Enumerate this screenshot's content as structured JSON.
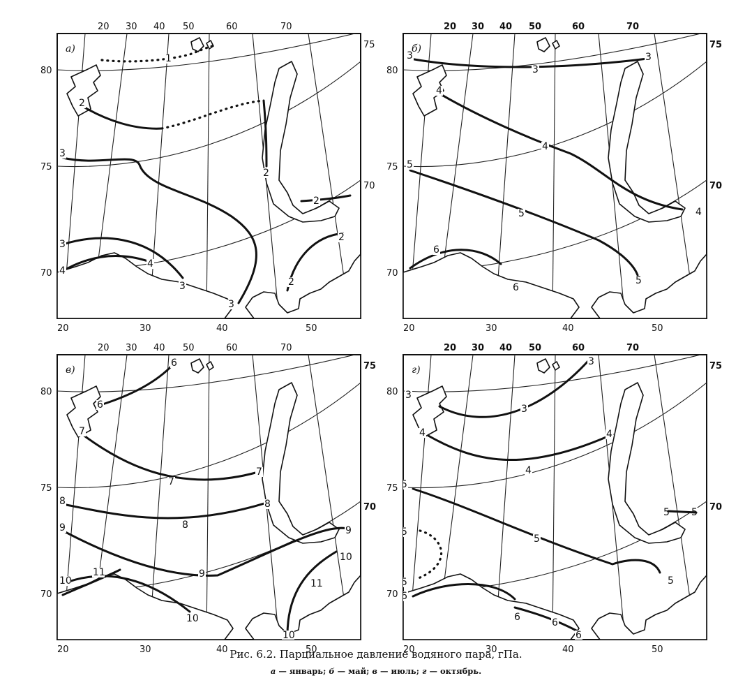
{
  "caption": "Рис. 6.2. Парциальное давление водяного пара, гПа.",
  "legend": [
    {
      "letter": "а",
      "text": "январь;"
    },
    {
      "letter": "б",
      "text": "май;"
    },
    {
      "letter": "в",
      "text": "июль;"
    },
    {
      "letter": "г",
      "text": "октябрь."
    }
  ],
  "panels": [
    {
      "id": "a",
      "label": "а)",
      "month": "январь",
      "top_lon_ticks": [
        "20",
        "30",
        "40",
        "50",
        "60",
        "70"
      ],
      "bottom_lon_ticks": [
        "20",
        "30",
        "40",
        "50"
      ],
      "left_lat_ticks": [
        "80",
        "75",
        "70"
      ],
      "right_lat_ticks": [
        "75",
        "70"
      ],
      "isolines": [
        {
          "value": "1",
          "style": "dotted"
        },
        {
          "value": "2",
          "style": "solid"
        },
        {
          "value": "3",
          "style": "solid"
        },
        {
          "value": "4",
          "style": "solid"
        }
      ]
    },
    {
      "id": "b",
      "label": "б)",
      "month": "май",
      "top_lon_ticks": [
        "20",
        "30",
        "40",
        "50",
        "60",
        "70"
      ],
      "bottom_lon_ticks": [
        "20",
        "30",
        "40",
        "50"
      ],
      "left_lat_ticks": [
        "80",
        "75",
        "70"
      ],
      "right_lat_ticks": [
        "75",
        "70"
      ],
      "isolines": [
        {
          "value": "3",
          "style": "solid"
        },
        {
          "value": "4",
          "style": "solid"
        },
        {
          "value": "5",
          "style": "solid"
        },
        {
          "value": "6",
          "style": "solid"
        }
      ]
    },
    {
      "id": "v",
      "label": "в)",
      "month": "июль",
      "top_lon_ticks": [
        "20",
        "30",
        "40",
        "50",
        "60",
        "70"
      ],
      "bottom_lon_ticks": [
        "20",
        "30",
        "40",
        "50"
      ],
      "left_lat_ticks": [
        "80",
        "75",
        "70"
      ],
      "right_lat_ticks": [
        "75",
        "70"
      ],
      "isolines": [
        {
          "value": "6",
          "style": "solid"
        },
        {
          "value": "7",
          "style": "solid"
        },
        {
          "value": "8",
          "style": "solid"
        },
        {
          "value": "9",
          "style": "solid"
        },
        {
          "value": "10",
          "style": "solid"
        },
        {
          "value": "11",
          "style": "solid"
        }
      ]
    },
    {
      "id": "g",
      "label": "г)",
      "month": "октябрь",
      "top_lon_ticks": [
        "20",
        "30",
        "40",
        "50",
        "60",
        "70"
      ],
      "bottom_lon_ticks": [
        "20",
        "30",
        "40",
        "50"
      ],
      "left_lat_ticks": [
        "80",
        "75",
        "70"
      ],
      "right_lat_ticks": [
        "75",
        "70"
      ],
      "isolines": [
        {
          "value": "3",
          "style": "solid"
        },
        {
          "value": "4",
          "style": "solid"
        },
        {
          "value": "5",
          "style": "solid"
        },
        {
          "value": "5",
          "style": "dotted"
        },
        {
          "value": "6",
          "style": "solid"
        }
      ]
    }
  ]
}
